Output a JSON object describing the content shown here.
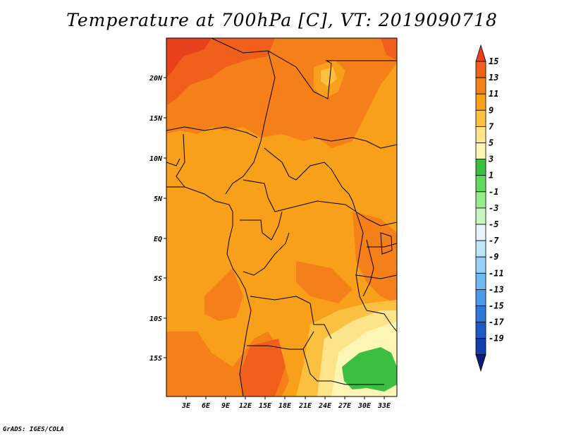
{
  "title": "Temperature at 700hPa [C], VT: 2019090718",
  "footer": "GrADS: IGES/COLA",
  "map": {
    "lat_labels": [
      "20N",
      "15N",
      "10N",
      "5N",
      "EQ",
      "5S",
      "10S",
      "15S"
    ],
    "lon_labels": [
      "3E",
      "6E",
      "9E",
      "12E",
      "15E",
      "18E",
      "21E",
      "24E",
      "27E",
      "30E",
      "33E"
    ]
  },
  "colorbar": {
    "labels": [
      "15",
      "13",
      "11",
      "9",
      "7",
      "5",
      "3",
      "1",
      "-1",
      "-3",
      "-5",
      "-7",
      "-9",
      "-11",
      "-13",
      "-15",
      "-17",
      "-19"
    ],
    "colors": [
      "#e8401a",
      "#f0601a",
      "#f5801a",
      "#f9a01a",
      "#fcc040",
      "#fde38a",
      "#fdf5b4",
      "#3cbf40",
      "#62d95c",
      "#96eb8a",
      "#c8f6c0",
      "#e6f4fa",
      "#bfe4f8",
      "#96d1f5",
      "#6eb8ef",
      "#4a9ae6",
      "#2d78d8",
      "#1c5ac8",
      "#123eae",
      "#0a1f78"
    ]
  },
  "colors": {
    "t15": "#e8401a",
    "t13": "#f0601a",
    "t11": "#f5801a",
    "t9": "#f9a01a",
    "t7": "#fcc040",
    "t5": "#fde38a",
    "t3": "#fdf5b4",
    "green": "#3cbf40"
  }
}
